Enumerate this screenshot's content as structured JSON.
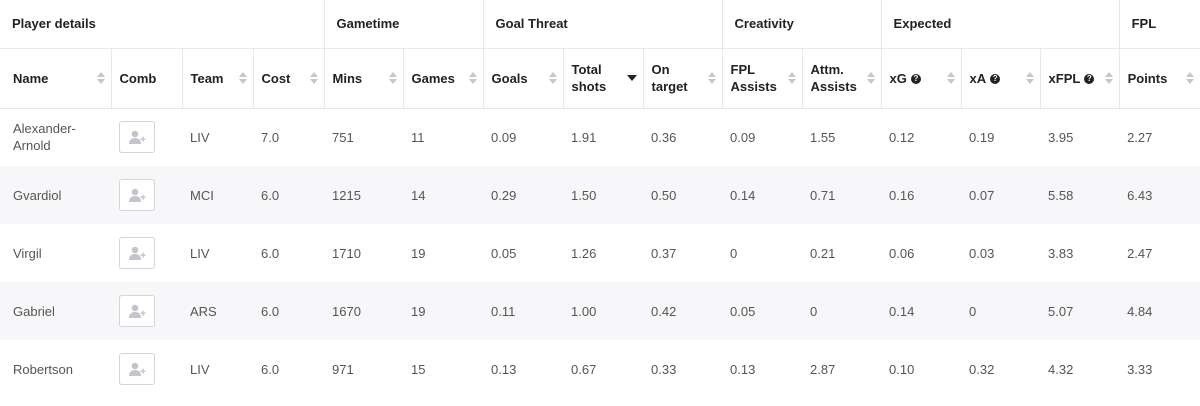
{
  "groups": {
    "player_details": "Player details",
    "gametime": "Gametime",
    "goal_threat": "Goal Threat",
    "creativity": "Creativity",
    "expected": "Expected",
    "fpl": "FPL"
  },
  "columns": {
    "name": "Name",
    "comb": "Comb",
    "team": "Team",
    "cost": "Cost",
    "mins": "Mins",
    "games": "Games",
    "goals": "Goals",
    "total_shots": "Total shots",
    "on_target": "On target",
    "fpl_assists": "FPL Assists",
    "attm_assists": "Attm. Assists",
    "xg": "xG",
    "xa": "xA",
    "xfpl": "xFPL",
    "points": "Points"
  },
  "info_glyph": "?",
  "icons": {
    "comb": "add-user-icon",
    "sort": "sort-arrows-icon",
    "info": "info-icon"
  },
  "rows": [
    {
      "name": "Alexander-Arnold",
      "team": "LIV",
      "cost": "7.0",
      "mins": "751",
      "games": "11",
      "goals": "0.09",
      "total_shots": "1.91",
      "on_target": "0.36",
      "fpl_assists": "0.09",
      "attm_assists": "1.55",
      "xg": "0.12",
      "xa": "0.19",
      "xfpl": "3.95",
      "points": "2.27"
    },
    {
      "name": "Gvardiol",
      "team": "MCI",
      "cost": "6.0",
      "mins": "1215",
      "games": "14",
      "goals": "0.29",
      "total_shots": "1.50",
      "on_target": "0.50",
      "fpl_assists": "0.14",
      "attm_assists": "0.71",
      "xg": "0.16",
      "xa": "0.07",
      "xfpl": "5.58",
      "points": "6.43"
    },
    {
      "name": "Virgil",
      "team": "LIV",
      "cost": "6.0",
      "mins": "1710",
      "games": "19",
      "goals": "0.05",
      "total_shots": "1.26",
      "on_target": "0.37",
      "fpl_assists": "0",
      "attm_assists": "0.21",
      "xg": "0.06",
      "xa": "0.03",
      "xfpl": "3.83",
      "points": "2.47"
    },
    {
      "name": "Gabriel",
      "team": "ARS",
      "cost": "6.0",
      "mins": "1670",
      "games": "19",
      "goals": "0.11",
      "total_shots": "1.00",
      "on_target": "0.42",
      "fpl_assists": "0.05",
      "attm_assists": "0",
      "xg": "0.14",
      "xa": "0",
      "xfpl": "5.07",
      "points": "4.84"
    },
    {
      "name": "Robertson",
      "team": "LIV",
      "cost": "6.0",
      "mins": "971",
      "games": "15",
      "goals": "0.13",
      "total_shots": "0.67",
      "on_target": "0.33",
      "fpl_assists": "0.13",
      "attm_assists": "2.87",
      "xg": "0.10",
      "xa": "0.32",
      "xfpl": "4.32",
      "points": "3.33"
    }
  ]
}
